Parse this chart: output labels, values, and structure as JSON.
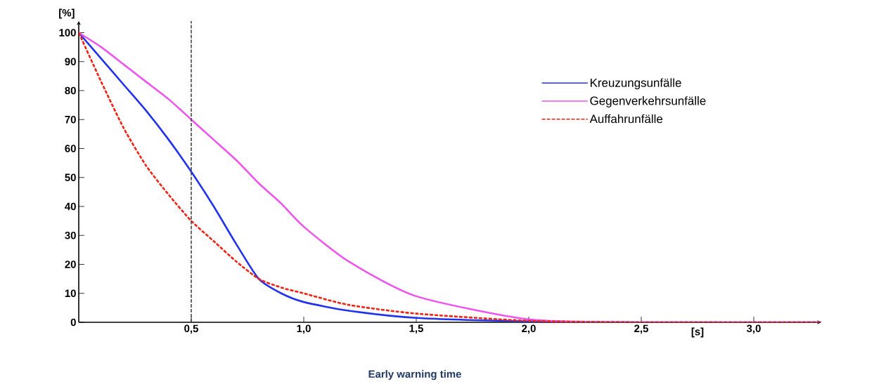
{
  "chart_data": {
    "type": "line",
    "xlabel": "[s]",
    "ylabel": "[%]",
    "annotations": [
      "Early warning time"
    ],
    "xlim": [
      0,
      3.3
    ],
    "ylim": [
      0,
      104
    ],
    "xticks": [
      {
        "value": 0.5,
        "label": "0,5"
      },
      {
        "value": 1.0,
        "label": "1,0"
      },
      {
        "value": 1.5,
        "label": "1,5"
      },
      {
        "value": 2.0,
        "label": "2,0"
      },
      {
        "value": 2.5,
        "label": "2,5"
      },
      {
        "value": 3.0,
        "label": "3,0"
      }
    ],
    "yticks": [
      0,
      10,
      20,
      30,
      40,
      50,
      60,
      70,
      80,
      90,
      100
    ],
    "x": [
      0,
      0.1,
      0.2,
      0.3,
      0.4,
      0.5,
      0.6,
      0.7,
      0.8,
      0.9,
      1.0,
      1.2,
      1.5,
      2.0,
      2.5,
      3.3
    ],
    "series": [
      {
        "name": "Kreuzungsunfälle",
        "color": "#2233ee",
        "line_style": "solid",
        "values": [
          100,
          91,
          82,
          73,
          63,
          52,
          40,
          27,
          15,
          10,
          7,
          4,
          1.5,
          0.3,
          0,
          0
        ]
      },
      {
        "name": "Gegenverkehrsunfälle",
        "color": "#ee55ee",
        "line_style": "solid",
        "values": [
          100,
          95,
          89,
          83,
          77,
          70,
          63,
          56,
          48,
          41,
          33,
          21,
          9,
          1,
          0,
          0
        ]
      },
      {
        "name": "Auffahrunfälle",
        "color": "#ee2211",
        "line_style": "dashed",
        "values": [
          100,
          83,
          67,
          54,
          44,
          35,
          28,
          21,
          15,
          12,
          10,
          6,
          3,
          0.5,
          0,
          0
        ]
      }
    ],
    "ref_lines": [
      {
        "axis": "x",
        "value": 0.5,
        "color": "#444444",
        "line_style": "dashed"
      }
    ],
    "legend": "right",
    "grid": false
  }
}
